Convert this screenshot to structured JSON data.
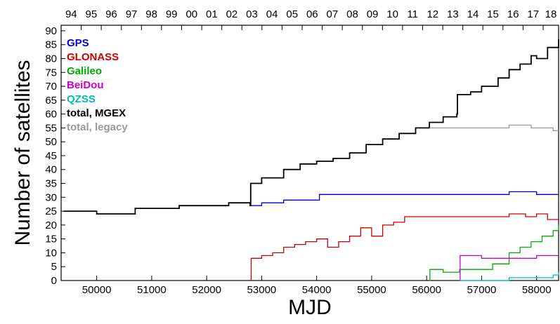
{
  "chart_data": {
    "type": "line",
    "title": "",
    "xlabel": "MJD",
    "ylabel": "Number of satellites",
    "xlim": [
      49353,
      58400
    ],
    "ylim": [
      0,
      92
    ],
    "x_ticks": [
      50000,
      51000,
      52000,
      53000,
      54000,
      55000,
      56000,
      57000,
      58000
    ],
    "y_ticks": [
      0,
      5,
      10,
      15,
      20,
      25,
      30,
      35,
      40,
      45,
      50,
      55,
      60,
      65,
      70,
      75,
      80,
      85,
      90
    ],
    "top_axis": {
      "label": "",
      "ticks": [
        {
          "label": "94",
          "mjd": 49353
        },
        {
          "label": "95",
          "mjd": 49718
        },
        {
          "label": "96",
          "mjd": 50083
        },
        {
          "label": "97",
          "mjd": 50449
        },
        {
          "label": "98",
          "mjd": 50814
        },
        {
          "label": "99",
          "mjd": 51179
        },
        {
          "label": "00",
          "mjd": 51544
        },
        {
          "label": "01",
          "mjd": 51910
        },
        {
          "label": "02",
          "mjd": 52275
        },
        {
          "label": "03",
          "mjd": 52640
        },
        {
          "label": "04",
          "mjd": 53005
        },
        {
          "label": "05",
          "mjd": 53371
        },
        {
          "label": "06",
          "mjd": 53736
        },
        {
          "label": "07",
          "mjd": 54101
        },
        {
          "label": "08",
          "mjd": 54466
        },
        {
          "label": "09",
          "mjd": 54832
        },
        {
          "label": "10",
          "mjd": 55197
        },
        {
          "label": "11",
          "mjd": 55562
        },
        {
          "label": "12",
          "mjd": 55927
        },
        {
          "label": "13",
          "mjd": 56293
        },
        {
          "label": "14",
          "mjd": 56658
        },
        {
          "label": "15",
          "mjd": 57023
        },
        {
          "label": "16",
          "mjd": 57388
        },
        {
          "label": "17",
          "mjd": 57754
        },
        {
          "label": "18",
          "mjd": 58119
        }
      ]
    },
    "legend_placement": "top-left",
    "grid": false,
    "series": [
      {
        "name": "GPS",
        "color": "#0000dd",
        "x": [
          52800,
          53000,
          53200,
          53400,
          53600,
          53800,
          54000,
          54050,
          54500,
          55000,
          55500,
          56000,
          56500,
          57000,
          57500,
          58000,
          58400
        ],
        "y": [
          27,
          28,
          28,
          29,
          29,
          29,
          29,
          31,
          31,
          31,
          31,
          31,
          31,
          31,
          32,
          31,
          31
        ]
      },
      {
        "name": "GLONASS",
        "color": "#cc0000",
        "x": [
          52800,
          52810,
          53000,
          53200,
          53400,
          53600,
          53800,
          54000,
          54200,
          54400,
          54600,
          54800,
          55000,
          55200,
          55400,
          55600,
          56000,
          56500,
          57000,
          57500,
          57800,
          58000,
          58200,
          58400
        ],
        "y": [
          0,
          8,
          9,
          10,
          12,
          13,
          14,
          15,
          12,
          14,
          16,
          19,
          16,
          20,
          21,
          23,
          23,
          23,
          23,
          24,
          23,
          24,
          22,
          22
        ]
      },
      {
        "name": "Galileo",
        "color": "#00aa00",
        "x": [
          56050,
          56060,
          56300,
          56600,
          56900,
          57200,
          57500,
          57700,
          57900,
          58100,
          58300,
          58400
        ],
        "y": [
          0,
          4,
          3,
          4,
          4,
          6,
          10,
          12,
          14,
          16,
          18,
          20
        ]
      },
      {
        "name": "BeiDou",
        "color": "#cc00cc",
        "x": [
          56600,
          56610,
          57000,
          57500,
          58000,
          58200,
          58400
        ],
        "y": [
          0,
          9,
          8,
          8,
          9,
          9,
          9
        ]
      },
      {
        "name": "QZSS",
        "color": "#00bbbb",
        "x": [
          56600,
          57000,
          57500,
          57900,
          58100,
          58300,
          58400
        ],
        "y": [
          0,
          0,
          1,
          1,
          1,
          2,
          3
        ]
      },
      {
        "name": "total, MGEX",
        "color": "#000000",
        "x": [
          49400,
          50000,
          50400,
          50700,
          51000,
          51500,
          52000,
          52400,
          52790,
          52800,
          53000,
          53400,
          53700,
          54000,
          54300,
          54600,
          54900,
          55200,
          55500,
          55800,
          56050,
          56300,
          56550,
          56560,
          56800,
          57000,
          57300,
          57500,
          57700,
          57900,
          58000,
          58200,
          58400
        ],
        "y": [
          25,
          24,
          24,
          26,
          26,
          27,
          27,
          28,
          27,
          35,
          37,
          40,
          42,
          43,
          44,
          46,
          49,
          51,
          53,
          55,
          57,
          59,
          60,
          67,
          68,
          70,
          73,
          76,
          78,
          81,
          80,
          84,
          87
        ]
      },
      {
        "name": "total, legacy",
        "color": "#999999",
        "x": [
          56050,
          56300,
          56600,
          56900,
          57200,
          57500,
          57700,
          57900,
          58100,
          58300,
          58400
        ],
        "y": [
          55,
          55,
          55,
          55,
          55,
          56,
          56,
          55,
          55,
          54,
          54
        ]
      }
    ]
  }
}
